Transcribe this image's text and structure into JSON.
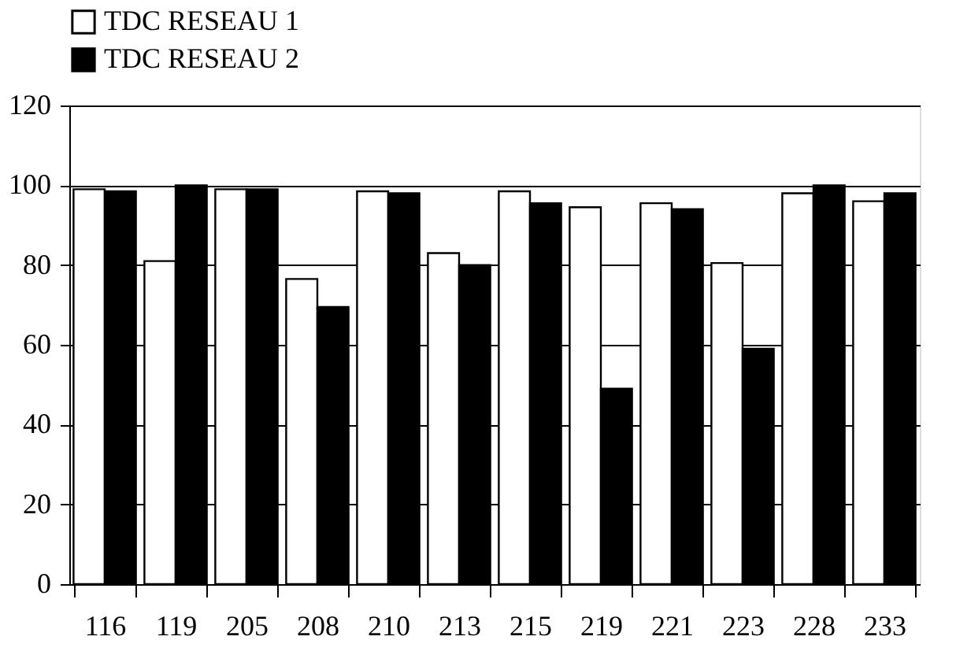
{
  "chart_data": {
    "type": "bar",
    "categories": [
      "116",
      "119",
      "205",
      "208",
      "210",
      "213",
      "215",
      "219",
      "221",
      "223",
      "228",
      "233"
    ],
    "series": [
      {
        "name": "TDC RESEAU 1",
        "color": "#ffffff",
        "values": [
          99,
          81,
          99,
          76.5,
          98.5,
          83,
          98.5,
          94.5,
          95.5,
          80.5,
          98,
          96
        ]
      },
      {
        "name": "TDC  RESEAU 2",
        "color": "#000000",
        "values": [
          98.5,
          100,
          99,
          69.5,
          98,
          80,
          95.5,
          49,
          94,
          59,
          100,
          98
        ]
      }
    ],
    "ylim": [
      0,
      120
    ],
    "yticks": [
      0,
      20,
      40,
      60,
      80,
      100,
      120
    ],
    "grid": "y",
    "legend": "top"
  }
}
